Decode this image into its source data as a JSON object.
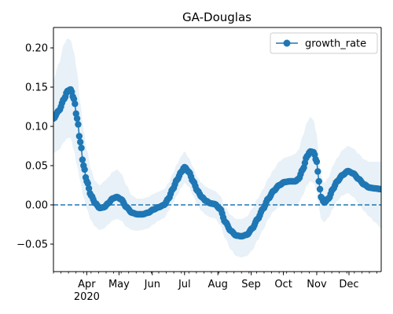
{
  "chart_data": {
    "type": "line",
    "title": "GA-Douglas",
    "xlabel": "",
    "ylabel": "",
    "x_range": [
      "2020-03-01",
      "2020-12-31"
    ],
    "ylim": [
      -0.085,
      0.226
    ],
    "yticks": [
      -0.05,
      0.0,
      0.05,
      0.1,
      0.15,
      0.2
    ],
    "ytick_labels": [
      "−0.05",
      "0.00",
      "0.05",
      "0.10",
      "0.15",
      "0.20"
    ],
    "xticks": [
      {
        "date": "2020-04-01",
        "label": "Apr",
        "year": "2020"
      },
      {
        "date": "2020-05-01",
        "label": "May"
      },
      {
        "date": "2020-06-01",
        "label": "Jun"
      },
      {
        "date": "2020-07-01",
        "label": "Jul"
      },
      {
        "date": "2020-08-01",
        "label": "Aug"
      },
      {
        "date": "2020-09-01",
        "label": "Sep"
      },
      {
        "date": "2020-10-01",
        "label": "Oct"
      },
      {
        "date": "2020-11-01",
        "label": "Nov"
      },
      {
        "date": "2020-12-01",
        "label": "Dec"
      }
    ],
    "grid": false,
    "legend": {
      "position": "upper right",
      "entries": [
        "growth_rate"
      ]
    },
    "reference_line": {
      "y": 0.0,
      "style": "dashed"
    },
    "colors": {
      "series": "#1f77b4",
      "band": "#1f77b4"
    },
    "series": [
      {
        "name": "growth_rate",
        "marker": "o",
        "points": [
          {
            "x": "2020-03-01",
            "y": 0.11,
            "lo": 0.066,
            "hi": 0.16
          },
          {
            "x": "2020-03-06",
            "y": 0.12,
            "lo": 0.07,
            "hi": 0.18
          },
          {
            "x": "2020-03-11",
            "y": 0.135,
            "lo": 0.08,
            "hi": 0.205
          },
          {
            "x": "2020-03-14",
            "y": 0.145,
            "lo": 0.085,
            "hi": 0.212
          },
          {
            "x": "2020-03-17",
            "y": 0.147,
            "lo": 0.085,
            "hi": 0.21
          },
          {
            "x": "2020-03-20",
            "y": 0.135,
            "lo": 0.07,
            "hi": 0.195
          },
          {
            "x": "2020-03-23",
            "y": 0.11,
            "lo": 0.05,
            "hi": 0.17
          },
          {
            "x": "2020-03-26",
            "y": 0.08,
            "lo": 0.03,
            "hi": 0.13
          },
          {
            "x": "2020-03-29",
            "y": 0.05,
            "lo": 0.01,
            "hi": 0.095
          },
          {
            "x": "2020-04-01",
            "y": 0.03,
            "lo": -0.005,
            "hi": 0.07
          },
          {
            "x": "2020-04-05",
            "y": 0.012,
            "lo": -0.02,
            "hi": 0.045
          },
          {
            "x": "2020-04-09",
            "y": 0.002,
            "lo": -0.028,
            "hi": 0.03
          },
          {
            "x": "2020-04-13",
            "y": -0.004,
            "lo": -0.032,
            "hi": 0.025
          },
          {
            "x": "2020-04-17",
            "y": -0.003,
            "lo": -0.03,
            "hi": 0.03
          },
          {
            "x": "2020-04-21",
            "y": 0.002,
            "lo": -0.025,
            "hi": 0.035
          },
          {
            "x": "2020-04-25",
            "y": 0.008,
            "lo": -0.02,
            "hi": 0.042
          },
          {
            "x": "2020-04-29",
            "y": 0.01,
            "lo": -0.018,
            "hi": 0.045
          },
          {
            "x": "2020-05-03",
            "y": 0.007,
            "lo": -0.02,
            "hi": 0.04
          },
          {
            "x": "2020-05-08",
            "y": -0.003,
            "lo": -0.028,
            "hi": 0.025
          },
          {
            "x": "2020-05-13",
            "y": -0.01,
            "lo": -0.032,
            "hi": 0.012
          },
          {
            "x": "2020-05-18",
            "y": -0.012,
            "lo": -0.033,
            "hi": 0.008
          },
          {
            "x": "2020-05-23",
            "y": -0.012,
            "lo": -0.032,
            "hi": 0.008
          },
          {
            "x": "2020-05-28",
            "y": -0.01,
            "lo": -0.03,
            "hi": 0.01
          },
          {
            "x": "2020-06-02",
            "y": -0.006,
            "lo": -0.025,
            "hi": 0.014
          },
          {
            "x": "2020-06-07",
            "y": -0.003,
            "lo": -0.02,
            "hi": 0.017
          },
          {
            "x": "2020-06-12",
            "y": 0.0,
            "lo": -0.017,
            "hi": 0.02
          },
          {
            "x": "2020-06-16",
            "y": 0.008,
            "lo": -0.008,
            "hi": 0.028
          },
          {
            "x": "2020-06-20",
            "y": 0.02,
            "lo": 0.002,
            "hi": 0.04
          },
          {
            "x": "2020-06-24",
            "y": 0.032,
            "lo": 0.012,
            "hi": 0.052
          },
          {
            "x": "2020-06-28",
            "y": 0.042,
            "lo": 0.022,
            "hi": 0.062
          },
          {
            "x": "2020-07-01",
            "y": 0.048,
            "lo": 0.028,
            "hi": 0.068
          },
          {
            "x": "2020-07-05",
            "y": 0.042,
            "lo": 0.023,
            "hi": 0.06
          },
          {
            "x": "2020-07-09",
            "y": 0.03,
            "lo": 0.012,
            "hi": 0.048
          },
          {
            "x": "2020-07-13",
            "y": 0.018,
            "lo": 0.0,
            "hi": 0.035
          },
          {
            "x": "2020-07-17",
            "y": 0.01,
            "lo": -0.008,
            "hi": 0.028
          },
          {
            "x": "2020-07-21",
            "y": 0.005,
            "lo": -0.013,
            "hi": 0.023
          },
          {
            "x": "2020-07-25",
            "y": 0.002,
            "lo": -0.016,
            "hi": 0.02
          },
          {
            "x": "2020-07-29",
            "y": 0.001,
            "lo": -0.017,
            "hi": 0.018
          },
          {
            "x": "2020-08-03",
            "y": -0.005,
            "lo": -0.025,
            "hi": 0.012
          },
          {
            "x": "2020-08-08",
            "y": -0.022,
            "lo": -0.043,
            "hi": -0.003
          },
          {
            "x": "2020-08-13",
            "y": -0.033,
            "lo": -0.057,
            "hi": -0.013
          },
          {
            "x": "2020-08-18",
            "y": -0.039,
            "lo": -0.065,
            "hi": -0.018
          },
          {
            "x": "2020-08-23",
            "y": -0.04,
            "lo": -0.067,
            "hi": -0.018
          },
          {
            "x": "2020-08-28",
            "y": -0.038,
            "lo": -0.065,
            "hi": -0.015
          },
          {
            "x": "2020-09-02",
            "y": -0.03,
            "lo": -0.058,
            "hi": -0.005
          },
          {
            "x": "2020-09-07",
            "y": -0.018,
            "lo": -0.045,
            "hi": 0.008
          },
          {
            "x": "2020-09-12",
            "y": -0.005,
            "lo": -0.032,
            "hi": 0.02
          },
          {
            "x": "2020-09-17",
            "y": 0.008,
            "lo": -0.018,
            "hi": 0.034
          },
          {
            "x": "2020-09-22",
            "y": 0.018,
            "lo": -0.008,
            "hi": 0.045
          },
          {
            "x": "2020-09-27",
            "y": 0.025,
            "lo": -0.002,
            "hi": 0.055
          },
          {
            "x": "2020-10-02",
            "y": 0.029,
            "lo": 0.0,
            "hi": 0.06
          },
          {
            "x": "2020-10-07",
            "y": 0.03,
            "lo": 0.0,
            "hi": 0.062
          },
          {
            "x": "2020-10-12",
            "y": 0.03,
            "lo": 0.0,
            "hi": 0.065
          },
          {
            "x": "2020-10-15",
            "y": 0.033,
            "lo": 0.002,
            "hi": 0.07
          },
          {
            "x": "2020-10-19",
            "y": 0.045,
            "lo": 0.012,
            "hi": 0.088
          },
          {
            "x": "2020-10-23",
            "y": 0.062,
            "lo": 0.025,
            "hi": 0.105
          },
          {
            "x": "2020-10-26",
            "y": 0.068,
            "lo": 0.03,
            "hi": 0.112
          },
          {
            "x": "2020-10-29",
            "y": 0.067,
            "lo": 0.028,
            "hi": 0.108
          },
          {
            "x": "2020-11-01",
            "y": 0.055,
            "lo": 0.018,
            "hi": 0.09
          },
          {
            "x": "2020-11-03",
            "y": 0.03,
            "lo": -0.002,
            "hi": 0.06
          },
          {
            "x": "2020-11-05",
            "y": 0.01,
            "lo": -0.018,
            "hi": 0.038
          },
          {
            "x": "2020-11-08",
            "y": 0.003,
            "lo": -0.022,
            "hi": 0.028
          },
          {
            "x": "2020-11-12",
            "y": 0.008,
            "lo": -0.016,
            "hi": 0.035
          },
          {
            "x": "2020-11-16",
            "y": 0.02,
            "lo": -0.005,
            "hi": 0.05
          },
          {
            "x": "2020-11-20",
            "y": 0.03,
            "lo": 0.005,
            "hi": 0.06
          },
          {
            "x": "2020-11-25",
            "y": 0.038,
            "lo": 0.012,
            "hi": 0.07
          },
          {
            "x": "2020-11-30",
            "y": 0.043,
            "lo": 0.015,
            "hi": 0.075
          },
          {
            "x": "2020-12-05",
            "y": 0.04,
            "lo": 0.01,
            "hi": 0.072
          },
          {
            "x": "2020-12-10",
            "y": 0.033,
            "lo": 0.002,
            "hi": 0.065
          },
          {
            "x": "2020-12-15",
            "y": 0.026,
            "lo": -0.008,
            "hi": 0.058
          },
          {
            "x": "2020-12-20",
            "y": 0.022,
            "lo": -0.015,
            "hi": 0.055
          },
          {
            "x": "2020-12-25",
            "y": 0.021,
            "lo": -0.022,
            "hi": 0.055
          },
          {
            "x": "2020-12-31",
            "y": 0.02,
            "lo": -0.03,
            "hi": 0.055
          }
        ]
      }
    ]
  }
}
